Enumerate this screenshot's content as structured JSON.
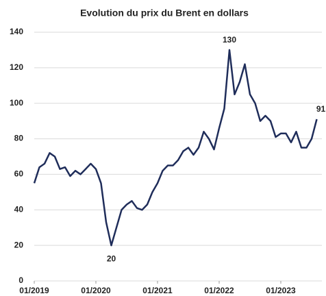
{
  "chart_data": {
    "type": "line",
    "title": "Evolution du prix du Brent en dollars",
    "x": [
      "2019-01",
      "2019-02",
      "2019-03",
      "2019-04",
      "2019-05",
      "2019-06",
      "2019-07",
      "2019-08",
      "2019-09",
      "2019-10",
      "2019-11",
      "2019-12",
      "2020-01",
      "2020-02",
      "2020-03",
      "2020-04",
      "2020-05",
      "2020-06",
      "2020-07",
      "2020-08",
      "2020-09",
      "2020-10",
      "2020-11",
      "2020-12",
      "2021-01",
      "2021-02",
      "2021-03",
      "2021-04",
      "2021-05",
      "2021-06",
      "2021-07",
      "2021-08",
      "2021-09",
      "2021-10",
      "2021-11",
      "2021-12",
      "2022-01",
      "2022-02",
      "2022-03",
      "2022-04",
      "2022-05",
      "2022-06",
      "2022-07",
      "2022-08",
      "2022-09",
      "2022-10",
      "2022-11",
      "2022-12",
      "2023-01",
      "2023-02",
      "2023-03",
      "2023-04",
      "2023-05",
      "2023-06",
      "2023-07",
      "2023-08"
    ],
    "series": [
      {
        "color": "#1f2d5a",
        "values": [
          55,
          64,
          66,
          72,
          70,
          63,
          64,
          59,
          62,
          60,
          63,
          66,
          63,
          55,
          33,
          20,
          30,
          40,
          43,
          45,
          41,
          40,
          43,
          50,
          55,
          62,
          65,
          65,
          68,
          73,
          75,
          71,
          75,
          84,
          80,
          74,
          86,
          97,
          130,
          105,
          112,
          122,
          105,
          100,
          90,
          93,
          90,
          81,
          83,
          83,
          78,
          84,
          75,
          75,
          80,
          91
        ]
      }
    ],
    "annotations": [
      {
        "x": "2022-03",
        "y": 130
      },
      {
        "x": "2020-04",
        "y": 20
      },
      {
        "x": "2023-08",
        "y": 91
      }
    ],
    "xlim": [
      "2019-01",
      "2023-08"
    ],
    "xticks": [
      {
        "value": "2019-01",
        "label": "01/2019"
      },
      {
        "value": "2020-01",
        "label": "01/2020"
      },
      {
        "value": "2021-01",
        "label": "01/2021"
      },
      {
        "value": "2022-01",
        "label": "01/2022"
      },
      {
        "value": "2023-01",
        "label": "01/2023"
      }
    ],
    "ylim": [
      0,
      140
    ],
    "yticks": [
      0,
      20,
      40,
      60,
      80,
      100,
      120,
      140
    ],
    "grid": true
  }
}
